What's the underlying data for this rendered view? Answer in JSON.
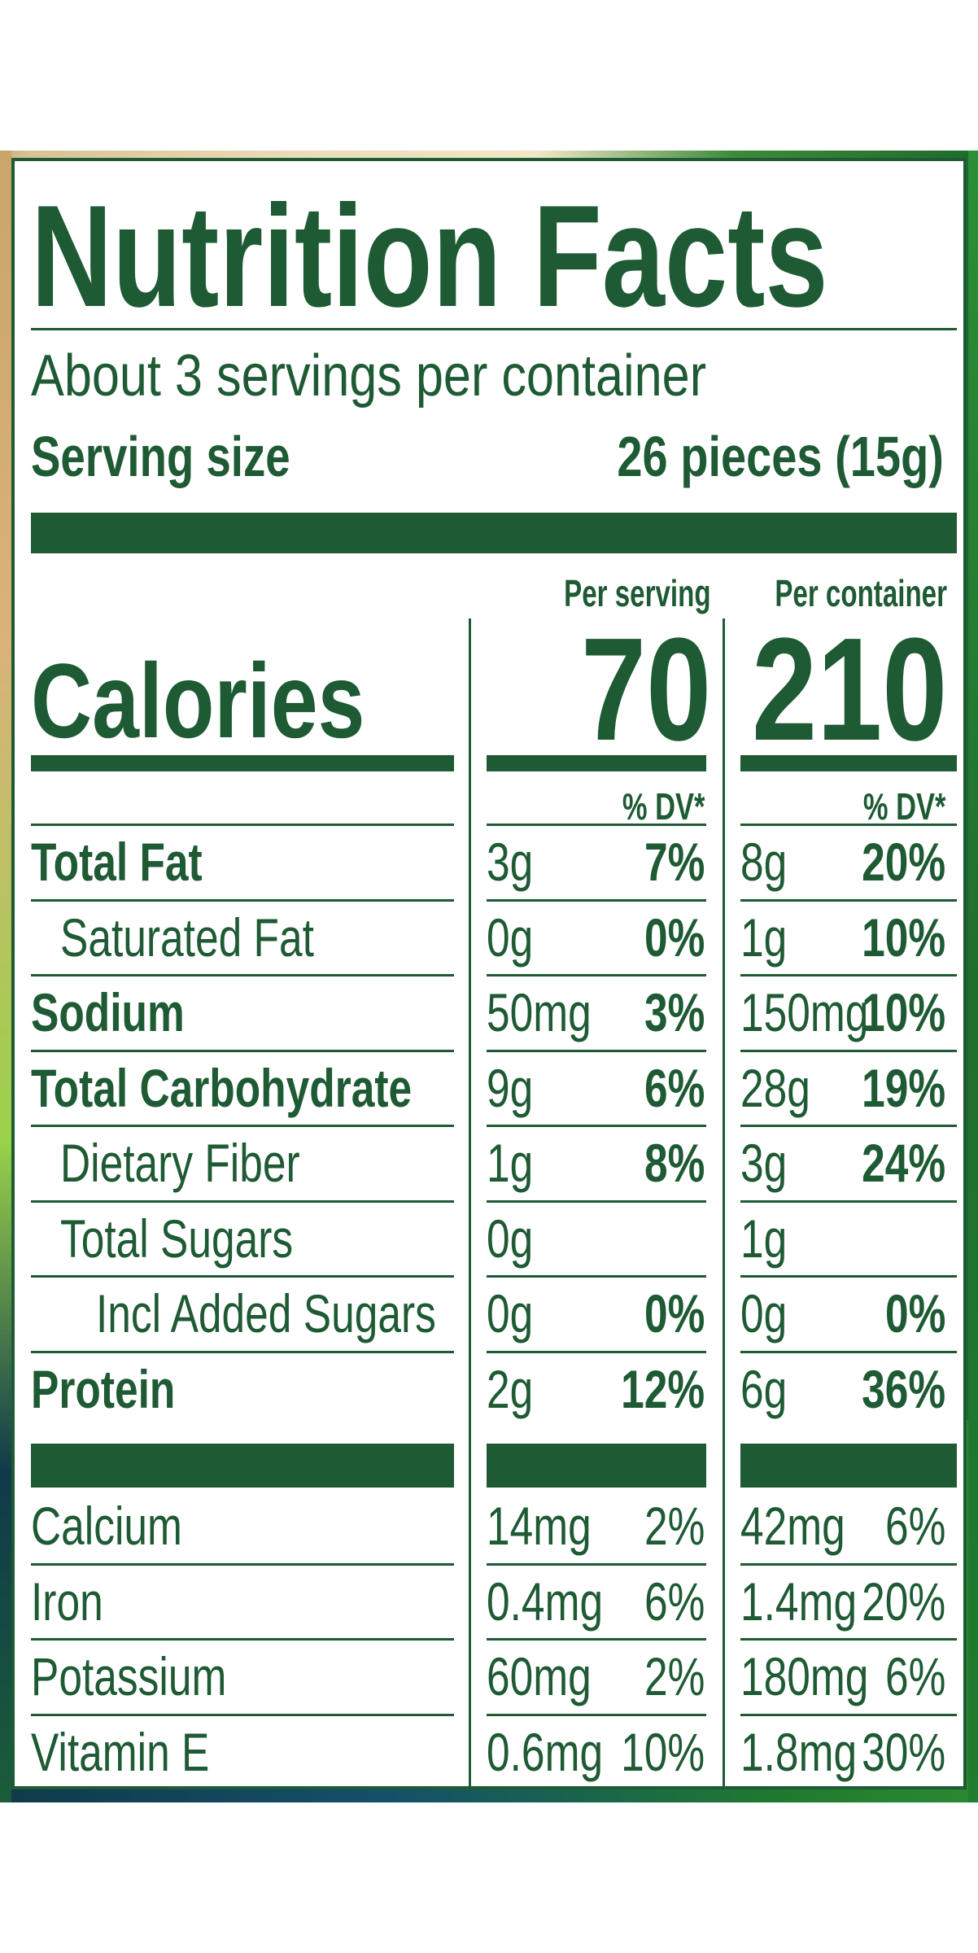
{
  "label": {
    "title": "Nutrition Facts",
    "servings": "About 3 servings per container",
    "serving_size_label": "Serving size",
    "serving_size_value": "26 pieces (15g)",
    "calories_label": "Calories",
    "col1_header": "Per serving",
    "col2_header": "Per container",
    "col1_calories": "70",
    "col2_calories": "210",
    "dv_header": "% DV*",
    "nutrients": [
      {
        "name": "Total Fat",
        "s_amt": "3g",
        "s_dv": "7%",
        "c_amt": "8g",
        "c_dv": "20%"
      },
      {
        "name": "Saturated Fat",
        "s_amt": "0g",
        "s_dv": "0%",
        "c_amt": "1g",
        "c_dv": "10%"
      },
      {
        "name": "Sodium",
        "s_amt": "50mg",
        "s_dv": "3%",
        "c_amt": "150mg",
        "c_dv": "10%"
      },
      {
        "name": "Total Carbohydrate",
        "s_amt": "9g",
        "s_dv": "6%",
        "c_amt": "28g",
        "c_dv": "19%"
      },
      {
        "name": "Dietary Fiber",
        "s_amt": "1g",
        "s_dv": "8%",
        "c_amt": "3g",
        "c_dv": "24%"
      },
      {
        "name": "Total Sugars",
        "s_amt": "0g",
        "s_dv": "",
        "c_amt": "1g",
        "c_dv": ""
      },
      {
        "name": "Incl Added Sugars",
        "s_amt": "0g",
        "s_dv": "0%",
        "c_amt": "0g",
        "c_dv": "0%"
      },
      {
        "name": "Protein",
        "s_amt": "2g",
        "s_dv": "12%",
        "c_amt": "6g",
        "c_dv": "36%"
      }
    ],
    "vitamins": [
      {
        "name": "Calcium",
        "s_amt": "14mg",
        "s_dv": "2%",
        "c_amt": "42mg",
        "c_dv": "6%"
      },
      {
        "name": "Iron",
        "s_amt": "0.4mg",
        "s_dv": "6%",
        "c_amt": "1.4mg",
        "c_dv": "20%"
      },
      {
        "name": "Potassium",
        "s_amt": "60mg",
        "s_dv": "2%",
        "c_amt": "180mg",
        "c_dv": "6%"
      },
      {
        "name": "Vitamin E",
        "s_amt": "0.6mg",
        "s_dv": "10%",
        "c_amt": "1.8mg",
        "c_dv": "30%"
      }
    ],
    "colors": {
      "ink": "#1e5a33"
    }
  }
}
